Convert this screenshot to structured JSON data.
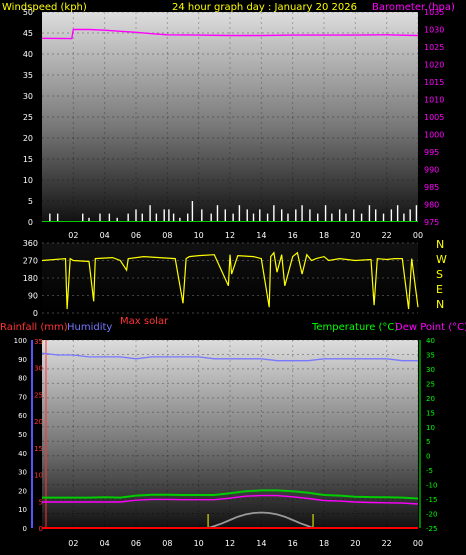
{
  "panels": {
    "top": {
      "title_left": "Windspeed (kph)",
      "title_center": "24 hour graph day : January 20 2026",
      "title_right": "Barometer (hpa)"
    },
    "middle": {
      "compass_labels": [
        "N",
        "W",
        "S",
        "E",
        "N"
      ],
      "solar_label": "Max solar"
    },
    "bottom": {
      "title_rain": "Rainfall (mm)",
      "title_humidity": "Humidity",
      "title_temp": "Temperature (°C)",
      "title_dew": "Dew Point (°C)"
    }
  },
  "colors": {
    "background": "#000000",
    "wind": "#ffffff",
    "wind_gust": "#ffffff",
    "barometer": "#ff00ff",
    "direction": "#ffff00",
    "humidity": "#7777ff",
    "temperature": "#00cc00",
    "dewpoint": "#ff00ff",
    "rainfall": "#ff0000",
    "solar": "#999999",
    "axis_left": "#ffffff",
    "axis_right_baro": "#ff00ff",
    "axis_right_temp": "#00ff00",
    "axis_left_rain": "#ff3333",
    "axis_left_hum": "#5555ff",
    "title": "#ffff00"
  },
  "chart_data": [
    {
      "type": "line",
      "name": "wind-and-barometer",
      "x_ticks": [
        "02",
        "04",
        "06",
        "08",
        "10",
        "12",
        "14",
        "16",
        "18",
        "20",
        "22",
        "00"
      ],
      "y_left_ticks": [
        0,
        5,
        10,
        15,
        20,
        25,
        30,
        35,
        40,
        45,
        50
      ],
      "y_left_range": [
        0,
        50
      ],
      "y_right_ticks": [
        975,
        980,
        985,
        990,
        995,
        1000,
        1005,
        1010,
        1015,
        1020,
        1025,
        1030,
        1035
      ],
      "y_right_range": [
        975,
        1035
      ],
      "series": [
        {
          "name": "Barometer (hpa)",
          "x": [
            0,
            1.9,
            2.0,
            3.0,
            4.0,
            5.0,
            6.0,
            7.0,
            8.0,
            10.0,
            12.0,
            14.0,
            16.0,
            18.0,
            20.0,
            22.0,
            24.0
          ],
          "y": [
            1027.5,
            1027.4,
            1030.0,
            1030.0,
            1029.8,
            1029.5,
            1029.2,
            1028.8,
            1028.5,
            1028.4,
            1028.3,
            1028.3,
            1028.4,
            1028.4,
            1028.4,
            1028.5,
            1028.3
          ]
        },
        {
          "name": "Windspeed (kph)",
          "x": [
            0.5,
            1.0,
            2.6,
            3.0,
            3.7,
            4.3,
            4.8,
            5.5,
            6.0,
            6.4,
            6.9,
            7.3,
            7.8,
            8.1,
            8.4,
            8.8,
            9.3,
            9.6,
            10.2,
            10.8,
            11.2,
            11.7,
            12.2,
            12.6,
            13.1,
            13.5,
            13.9,
            14.4,
            14.8,
            15.3,
            15.7,
            16.2,
            16.6,
            17.1,
            17.6,
            18.1,
            18.5,
            19.0,
            19.4,
            19.9,
            20.4,
            20.9,
            21.3,
            21.8,
            22.3,
            22.7,
            23.1,
            23.5,
            23.9
          ],
          "y": [
            2,
            2,
            2,
            1,
            2,
            2,
            1,
            2,
            3,
            2,
            4,
            2,
            3,
            3,
            2,
            1,
            2,
            5,
            3,
            2,
            4,
            3,
            2,
            4,
            3,
            2,
            3,
            2,
            4,
            3,
            2,
            3,
            4,
            3,
            2,
            4,
            2,
            3,
            2,
            3,
            2,
            4,
            3,
            2,
            3,
            4,
            2,
            3,
            4
          ]
        }
      ]
    },
    {
      "type": "line",
      "name": "wind-direction",
      "y_left_ticks": [
        0,
        90,
        180,
        270,
        360
      ],
      "y_left_range": [
        0,
        360
      ],
      "series": [
        {
          "name": "Wind direction",
          "x": [
            0,
            1.5,
            1.6,
            1.8,
            2.0,
            3.0,
            3.3,
            3.4,
            4.5,
            5.0,
            5.4,
            5.5,
            6.5,
            7.5,
            8.5,
            9.0,
            9.2,
            9.4,
            10.0,
            11.0,
            11.9,
            12.0,
            12.1,
            12.5,
            13.5,
            14.0,
            14.5,
            14.6,
            14.8,
            15.0,
            15.3,
            15.5,
            16.0,
            16.3,
            16.6,
            16.9,
            17.2,
            17.5,
            18.0,
            18.3,
            19.0,
            20.0,
            21.0,
            21.2,
            21.4,
            22.0,
            22.5,
            23.0,
            23.4,
            23.6,
            24.0
          ],
          "y": [
            270,
            280,
            20,
            280,
            270,
            265,
            60,
            280,
            285,
            270,
            220,
            280,
            290,
            285,
            280,
            50,
            280,
            290,
            295,
            300,
            140,
            300,
            200,
            295,
            290,
            280,
            30,
            290,
            310,
            210,
            300,
            140,
            290,
            310,
            200,
            300,
            270,
            280,
            290,
            270,
            280,
            270,
            275,
            40,
            280,
            275,
            280,
            280,
            20,
            280,
            30
          ]
        }
      ]
    },
    {
      "type": "line",
      "name": "temperature-humidity-rain",
      "x_ticks": [
        "02",
        "04",
        "06",
        "08",
        "10",
        "12",
        "14",
        "16",
        "18",
        "20",
        "22",
        "00"
      ],
      "y_left_hum_ticks": [
        0,
        10,
        20,
        30,
        40,
        50,
        60,
        70,
        80,
        90,
        100
      ],
      "y_left_rain_ticks": [
        0,
        5,
        10,
        15,
        20,
        25,
        30,
        35
      ],
      "y_right_ticks": [
        -25,
        -20,
        -15,
        -10,
        -5,
        0,
        5,
        10,
        15,
        20,
        25,
        30,
        35,
        40
      ],
      "y_right_range": [
        -25,
        40
      ],
      "series": [
        {
          "name": "Humidity",
          "x": [
            0,
            1,
            2,
            3,
            4,
            5,
            6,
            7,
            8,
            9,
            10,
            11,
            12,
            13,
            14,
            15,
            16,
            17,
            18,
            19,
            20,
            21,
            22,
            23,
            24
          ],
          "y": [
            93,
            92,
            92,
            91,
            91,
            91,
            90,
            91,
            91,
            91,
            91,
            90,
            90,
            90,
            90,
            89,
            89,
            89,
            90,
            90,
            90,
            90,
            90,
            89,
            89
          ]
        },
        {
          "name": "Temperature (°C)",
          "x": [
            0,
            1,
            2,
            3,
            4,
            5,
            6,
            7,
            8,
            9,
            10,
            11,
            12,
            13,
            14,
            15,
            16,
            17,
            18,
            19,
            20,
            21,
            22,
            23,
            24
          ],
          "y": [
            -14.5,
            -14.5,
            -14.5,
            -14.5,
            -14.4,
            -14.5,
            -13.8,
            -13.5,
            -13.5,
            -13.6,
            -13.6,
            -13.6,
            -13,
            -12.3,
            -12,
            -12,
            -12.3,
            -12.8,
            -13.6,
            -13.8,
            -14.2,
            -14.3,
            -14.4,
            -14.5,
            -14.8
          ]
        },
        {
          "name": "Dew Point (°C)",
          "x": [
            0,
            1,
            2,
            3,
            4,
            5,
            6,
            7,
            8,
            9,
            10,
            11,
            12,
            13,
            14,
            15,
            16,
            17,
            18,
            19,
            20,
            21,
            22,
            23,
            24
          ],
          "y": [
            -16,
            -16,
            -16,
            -16,
            -16,
            -16,
            -15.4,
            -15.1,
            -15.1,
            -15.2,
            -15.2,
            -15.2,
            -14.7,
            -14,
            -13.8,
            -13.8,
            -14.2,
            -14.8,
            -15.5,
            -15.7,
            -16,
            -16.2,
            -16.3,
            -16.4,
            -16.7
          ]
        },
        {
          "name": "Rainfall (mm)",
          "x": [
            0,
            24
          ],
          "y": [
            0,
            0
          ]
        },
        {
          "name": "Max solar",
          "x": [
            10.6,
            11.0,
            11.5,
            12.0,
            12.5,
            13.0,
            13.5,
            14.0,
            14.5,
            15.0,
            15.5,
            16.0,
            16.5,
            17.0,
            17.3
          ],
          "y": [
            0,
            4,
            10,
            17,
            24,
            29,
            32,
            33,
            32,
            29,
            24,
            17,
            10,
            4,
            0
          ]
        }
      ]
    }
  ]
}
